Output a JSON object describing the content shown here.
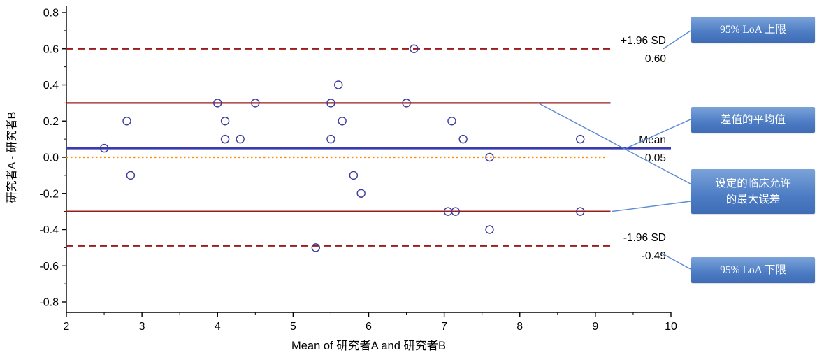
{
  "chart_data": {
    "type": "scatter",
    "title": "",
    "xlabel": "Mean of 研究者A and 研究者B",
    "ylabel": "研究者A - 研究者B",
    "xlim": [
      2,
      10
    ],
    "ylim": [
      -0.8,
      0.8
    ],
    "grid": false,
    "x_ticks": [
      2,
      3,
      4,
      5,
      6,
      7,
      8,
      9,
      10
    ],
    "y_tick_values": [
      -0.8,
      -0.6,
      -0.4,
      -0.2,
      0,
      0.2,
      0.4,
      0.6,
      0.8
    ],
    "y_tick_labels": [
      "-0.8",
      "-0.6",
      "-0.4",
      "-0.2",
      "0.0",
      "0.2",
      "0.4",
      "0.6",
      "0.8"
    ],
    "point_color": "#3c3c9e",
    "points": [
      [
        2.5,
        0.05
      ],
      [
        2.8,
        0.2
      ],
      [
        2.85,
        -0.1
      ],
      [
        4.0,
        0.3
      ],
      [
        4.1,
        0.2
      ],
      [
        4.1,
        0.1
      ],
      [
        4.3,
        0.1
      ],
      [
        4.5,
        0.3
      ],
      [
        5.3,
        -0.5
      ],
      [
        5.5,
        0.3
      ],
      [
        5.5,
        0.1
      ],
      [
        5.6,
        0.4
      ],
      [
        5.65,
        0.2
      ],
      [
        5.8,
        -0.1
      ],
      [
        5.9,
        -0.2
      ],
      [
        6.5,
        0.3
      ],
      [
        6.6,
        0.6
      ],
      [
        7.1,
        0.2
      ],
      [
        7.05,
        -0.3
      ],
      [
        7.15,
        -0.3
      ],
      [
        7.25,
        0.1
      ],
      [
        7.6,
        0.0
      ],
      [
        7.6,
        -0.4
      ],
      [
        8.8,
        0.1
      ],
      [
        8.8,
        -0.3
      ]
    ],
    "ref_lines": [
      {
        "id": "upper-loa",
        "y": 0.6,
        "style": "dashed",
        "color": "#9b1c1c",
        "width": 2.2,
        "x_start": 2,
        "x_end": 9.2,
        "label_above": "+1.96 SD",
        "label_below": "0.60"
      },
      {
        "id": "upper-clinical",
        "y": 0.3,
        "style": "solid",
        "color": "#9b1c1c",
        "width": 2.2,
        "x_start": 2,
        "x_end": 9.2
      },
      {
        "id": "mean",
        "y": 0.05,
        "style": "solid",
        "color": "#3b3bb0",
        "width": 3,
        "x_start": 2,
        "x_end": 10,
        "label_above": "Mean",
        "label_below": "0.05"
      },
      {
        "id": "zero",
        "y": 0.0,
        "style": "dotted",
        "color": "#ff8c00",
        "width": 2.2,
        "x_start": 2,
        "x_end": 9.15
      },
      {
        "id": "lower-clinical",
        "y": -0.3,
        "style": "solid",
        "color": "#9b1c1c",
        "width": 2.2,
        "x_start": 2,
        "x_end": 9.2
      },
      {
        "id": "lower-loa",
        "y": -0.49,
        "style": "dashed",
        "color": "#9b1c1c",
        "width": 2.2,
        "x_start": 2,
        "x_end": 9.2,
        "label_above": "-1.96 SD",
        "label_below": "-0.49"
      }
    ]
  },
  "callouts": [
    {
      "id": "upper-loa",
      "lines": [
        "95% LoA 上限"
      ]
    },
    {
      "id": "mean-diff",
      "lines": [
        "差值的平均值"
      ]
    },
    {
      "id": "clinical-limit",
      "lines": [
        "设定的临床允许",
        "的最大误差"
      ]
    },
    {
      "id": "lower-loa",
      "lines": [
        "95% LoA 下限"
      ]
    }
  ],
  "colors": {
    "callout_gradient_top": "#7ba3d9",
    "callout_gradient_bottom": "#3f6cb5",
    "callout_text": "#ffffff",
    "leader_line": "#5b8bd0",
    "axis": "#000000"
  }
}
